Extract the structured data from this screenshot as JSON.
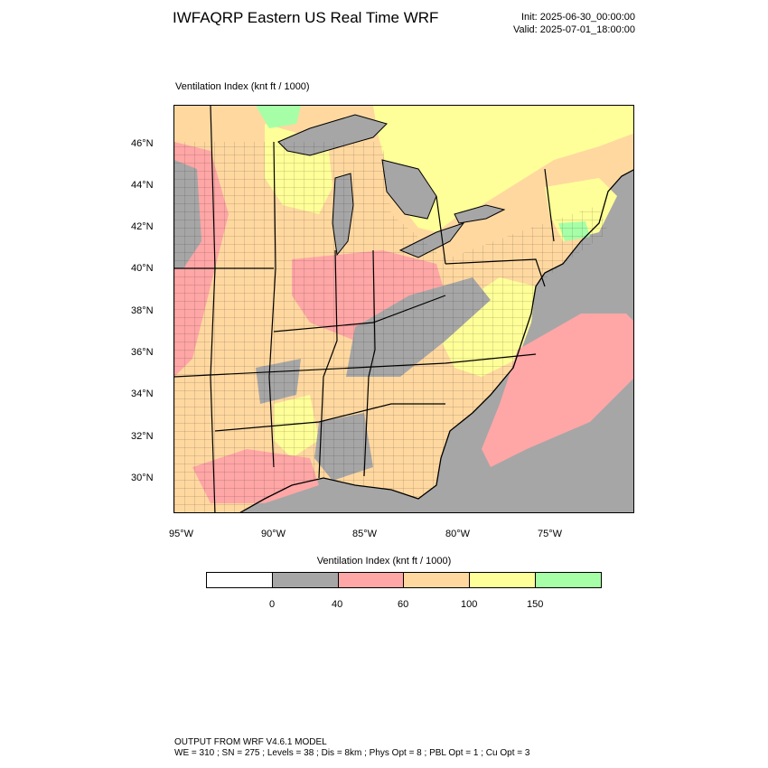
{
  "header": {
    "title": "IWFAQRP Eastern US Real Time WRF",
    "init": "Init: 2025-06-30_00:00:00",
    "valid": "Valid: 2025-07-01_18:00:00"
  },
  "map": {
    "field_label": "Ventilation Index   (knt ft / 1000)",
    "lat_labels": [
      "46°N",
      "44°N",
      "42°N",
      "40°N",
      "38°N",
      "36°N",
      "34°N",
      "32°N",
      "30°N"
    ],
    "lon_labels": [
      "95°W",
      "90°W",
      "85°W",
      "80°W",
      "75°W"
    ],
    "colors": {
      "water": "#a6a6a6",
      "lt40": "#a6a6a6",
      "40_60": "#ffa6a6",
      "60_100": "#ffd8a0",
      "100_150": "#ffff99",
      "gt150": "#a6ffa6",
      "boundary": "#000000"
    }
  },
  "colorbar": {
    "label": "Ventilation Index  (knt ft / 1000)",
    "colors": [
      "#ffffff",
      "#a6a6a6",
      "#ffa6a6",
      "#ffd8a0",
      "#ffff99",
      "#a6ffa6"
    ],
    "ticks": [
      "0",
      "40",
      "60",
      "100",
      "150"
    ]
  },
  "footer": {
    "line1": "OUTPUT FROM WRF V4.6.1 MODEL",
    "line2": "WE = 310 ; SN = 275 ; Levels = 38 ; Dis = 8km ; Phys Opt = 8 ; PBL Opt = 1 ; Cu Opt = 3"
  }
}
